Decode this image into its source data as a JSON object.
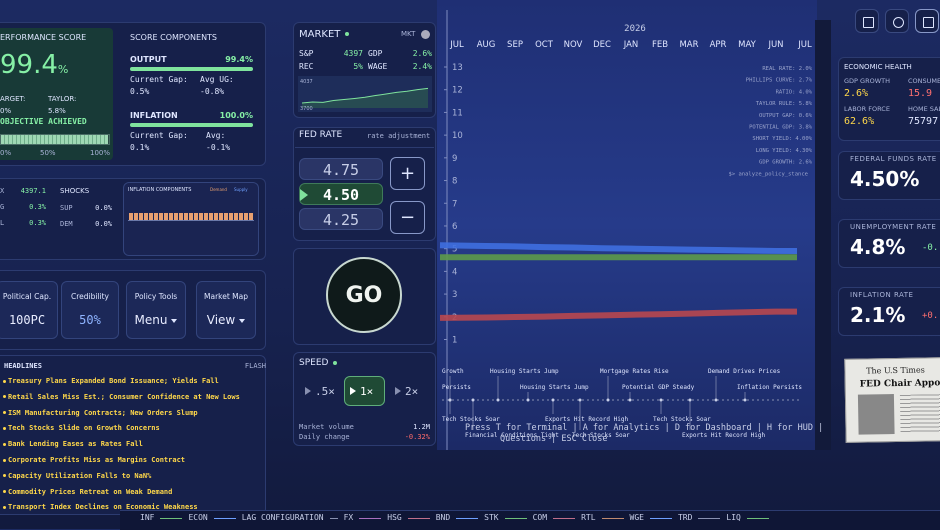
{
  "score": {
    "title": "ERFORMANCE SCORE",
    "value": "99.4",
    "unit": "%",
    "target_label": "ARGET:",
    "taylor_label": "TAYLOR:",
    "target": "0%",
    "taylor": "5.8%",
    "status": "OBJECTIVE ACHIEVED",
    "progress": 99.4,
    "scale": [
      "0%",
      "50%",
      "100%"
    ]
  },
  "components": {
    "title": "SCORE COMPONENTS",
    "output": {
      "label": "OUTPUT",
      "value": "99.4%",
      "gap_label": "Current Gap:",
      "avg_label": "Avg UG:",
      "gap": "0.5%",
      "avg": "-0.8%"
    },
    "inflation": {
      "label": "INFLATION",
      "value": "100.0%",
      "gap_label": "Current Gap:",
      "avg_label": "Avg:",
      "gap": "0.1%",
      "avg": "-0.1%"
    }
  },
  "indicators": [
    {
      "label": "X",
      "value": "4397.1"
    },
    {
      "label": "G",
      "value": "0.3%"
    },
    {
      "label": "L",
      "value": "0.3%"
    }
  ],
  "shocks": {
    "title": "SHOCKS",
    "rows": [
      {
        "label": "SUP",
        "value": "0.0%"
      },
      {
        "label": "DEM",
        "value": "0.0%"
      }
    ]
  },
  "inflation_components": {
    "title": "INFLATION COMPONENTS",
    "legend": [
      "Demand",
      "Supply"
    ],
    "values": [
      1.1,
      1.2,
      1.1,
      1.2,
      1.1,
      1.1,
      1.2,
      1.1,
      1.2,
      1.1,
      1.1,
      1.2,
      1.1,
      1.2,
      1.1,
      1.1,
      1.2,
      1.1,
      1.2,
      1.1,
      1.1,
      1.2,
      1.1,
      1.2,
      1.1
    ]
  },
  "tools": [
    {
      "label": "Political Cap.",
      "value": "100PC"
    },
    {
      "label": "Credibility",
      "value": "50%"
    },
    {
      "label": "Policy Tools",
      "value": "Menu"
    },
    {
      "label": "Market Map",
      "value": "View"
    }
  ],
  "headlines": {
    "title": "HEADLINES",
    "badge": "FLASH",
    "items": [
      "Treasury Plans Expanded Bond Issuance; Yields Fall",
      "Retail Sales Miss Est.; Consumer Confidence at New Lows",
      "ISM Manufacturing Contracts; New Orders Slump",
      "Tech Stocks Slide on Growth Concerns",
      "Bank Lending Eases as Rates Fall",
      "Corporate Profits Miss as Margins Contract",
      "Capacity Utilization Falls to NaN%",
      "Commodity Prices Retreat on Weak Demand",
      "Transport Index Declines on Economic Weakness"
    ]
  },
  "market": {
    "title": "MARKET",
    "badge": "MKT",
    "rows": [
      [
        "S&P",
        "4397",
        "GDP",
        "2.6%"
      ],
      [
        "REC",
        "5%",
        "WAGE",
        "2.4%"
      ]
    ],
    "spark_top": "4037",
    "spark_bottom": "3700",
    "spark": [
      3760,
      3772,
      3768,
      3790,
      3802,
      3815,
      3830,
      3850,
      3868,
      3888,
      3902,
      3921,
      3936
    ]
  },
  "fed_rate": {
    "title": "FED RATE",
    "subtitle": "rate adjustment",
    "options": [
      "4.75",
      "4.50",
      "4.25"
    ],
    "plus": "+",
    "minus": "−"
  },
  "go": "GO",
  "speed": {
    "title": "SPEED",
    "options": [
      ".5×",
      "1×",
      "2×"
    ],
    "volume_label": "Market volume",
    "volume": "1.2M",
    "change_label": "Daily change",
    "change": "-0.32%"
  },
  "chart": {
    "year": "2026",
    "months": [
      "JUL",
      "AUG",
      "SEP",
      "OCT",
      "NOV",
      "DEC",
      "JAN",
      "FEB",
      "MAR",
      "APR",
      "MAY",
      "JUN",
      "JUL"
    ],
    "ylim": [
      1,
      13
    ],
    "yticks": [
      13,
      12,
      11,
      10,
      9,
      8,
      7,
      6,
      5,
      4,
      3,
      2,
      1
    ],
    "series": [
      {
        "color": "#3f6fe0",
        "values": [
          5.15,
          5.12,
          5.1,
          5.07,
          5.05,
          5.02,
          5.0,
          4.98,
          4.96,
          4.94,
          4.92,
          4.9,
          null
        ]
      },
      {
        "color": "#5d9a4a",
        "values": [
          4.62,
          4.62,
          4.62,
          4.62,
          4.62,
          4.62,
          4.62,
          4.62,
          4.62,
          4.62,
          4.62,
          4.62,
          null
        ]
      },
      {
        "color": "#b8474f",
        "values": [
          1.95,
          1.97,
          1.99,
          2.01,
          2.04,
          2.06,
          2.09,
          2.11,
          2.14,
          2.17,
          2.2,
          2.23,
          null
        ]
      }
    ]
  },
  "overlay_stats": [
    "REAL RATE: 2.0%",
    "PHILLIPS CURVE: 2.7%",
    "RATIO: 4.0%",
    "TAYLOR RULE: 5.8%",
    "OUTPUT GAP: 0.6%",
    "POTENTIAL GDP: 3.8%",
    "SHORT YIELD: 4.00%",
    "LONG YIELD: 4.30%",
    "GDP GROWTH: 2.6%",
    "$> analyze_policy_stance"
  ],
  "events": [
    "Growth",
    "Housing Starts Jump",
    "Mortgage Rates Rise",
    "Demand Drives Prices",
    "Persists",
    "Housing Starts Jump",
    "Potential GDP Steady",
    "Inflation Persists",
    "Tech Stocks Soar",
    "Exports Hit Record High",
    "Tech Stocks Soar",
    "Financial Conditions Tight",
    "Tech Stocks Soar",
    "Exports Hit Record High"
  ],
  "hint": [
    "Press T for Terminal | A for Analytics | D for Dashboard | H for HUD |",
    "Questions | ESC Close"
  ],
  "health": {
    "title": "ECONOMIC HEALTH",
    "items": [
      {
        "label": "GDP GROWTH",
        "value": "2.6%"
      },
      {
        "label": "CONSUMER",
        "value": "15.9"
      },
      {
        "label": "LABOR FORCE",
        "value": "62.6%"
      },
      {
        "label": "HOME SALE",
        "value": "75797"
      }
    ]
  },
  "rates": [
    {
      "label": "FEDERAL FUNDS RATE",
      "value": "4.50%"
    },
    {
      "label": "UNEMPLOYMENT RATE",
      "value": "4.8%",
      "change": "-0."
    },
    {
      "label": "INFLATION RATE",
      "value": "2.1%",
      "change": "+0."
    }
  ],
  "newspaper": {
    "name": "The U.S Times",
    "headline": "FED Chair Appoint"
  },
  "ticker": [
    "INF",
    "ECON",
    "LAG CONFIGURATION",
    "FX",
    "HSG",
    "BND",
    "STK",
    "COM",
    "RTL",
    "WGE",
    "TRD",
    "LIQ"
  ]
}
